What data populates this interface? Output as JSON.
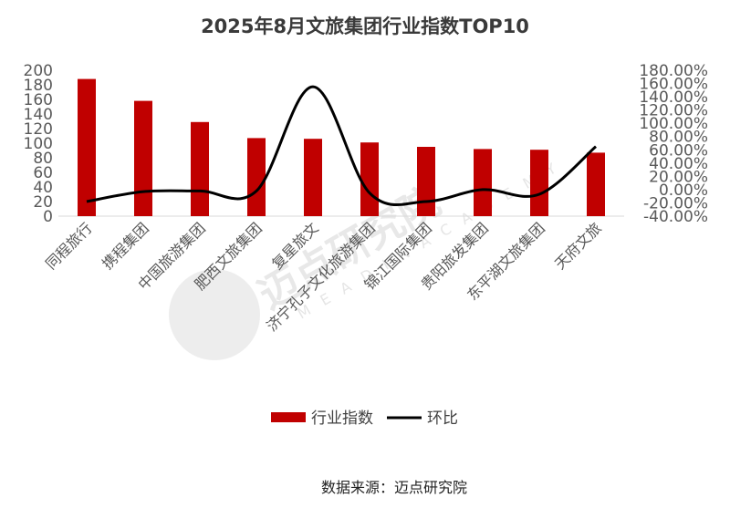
{
  "chart_data": {
    "type": "bar",
    "title": "2025年8月文旅集团行业指数TOP10",
    "categories": [
      "同程旅行",
      "携程集团",
      "中国旅游集团",
      "肥西文旅集团",
      "复星旅文",
      "济宁孔子文化旅游集团",
      "锦江国际集团",
      "贵阳旅发集团",
      "东平湖文旅集团",
      "天府文旅"
    ],
    "series": [
      {
        "name": "行业指数",
        "type": "bar",
        "axis": "left",
        "color": "#c00000",
        "values": [
          188,
          158,
          129,
          107,
          106,
          101,
          95,
          92,
          91,
          87
        ]
      },
      {
        "name": "环比",
        "type": "line",
        "axis": "right",
        "color": "#000000",
        "unit": "%",
        "values": [
          -18,
          -3,
          -2,
          -2,
          155,
          -5,
          -18,
          0,
          -7,
          65
        ]
      }
    ],
    "left_axis": {
      "min": 0,
      "max": 200,
      "step": 20,
      "ticks": [
        "0",
        "20",
        "40",
        "60",
        "80",
        "100",
        "120",
        "140",
        "160",
        "180",
        "200"
      ]
    },
    "right_axis": {
      "min": -40,
      "max": 180,
      "step": 20,
      "ticks": [
        "-40.00%",
        "-20.00%",
        "0.00%",
        "20.00%",
        "40.00%",
        "60.00%",
        "80.00%",
        "100.00%",
        "120.00%",
        "140.00%",
        "160.00%",
        "180.00%"
      ]
    },
    "legend_position": "bottom",
    "grid": false
  },
  "source": "数据来源：迈点研究院",
  "watermark": {
    "text": "迈点研究院",
    "subtext": "M E A D I N   A C A D E M Y"
  }
}
